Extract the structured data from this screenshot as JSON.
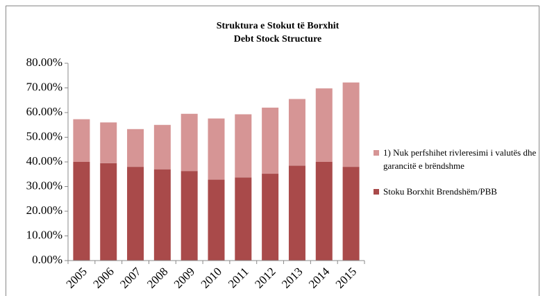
{
  "chart_data": {
    "type": "stacked_bar",
    "title": "Struktura e Stokut të Borxhit",
    "subtitle": "Debt Stock Structure",
    "categories": [
      "2005",
      "2006",
      "2007",
      "2008",
      "2009",
      "2010",
      "2011",
      "2012",
      "2013",
      "2014",
      "2015"
    ],
    "series": [
      {
        "name": "Stoku Borxhit Brendshëm/PBB",
        "color": "#a94a4a",
        "values": [
          40.0,
          39.5,
          38.0,
          37.0,
          36.3,
          32.8,
          33.7,
          35.2,
          38.5,
          40.0,
          38.0
        ]
      },
      {
        "name": "1) Nuk perfshihet rivleresimi i valutës dhe garancitë e brëndshme",
        "color": "#d69595",
        "values": [
          17.3,
          16.5,
          15.3,
          18.0,
          23.2,
          24.8,
          25.6,
          26.8,
          27.0,
          29.8,
          34.2
        ]
      }
    ],
    "ylim": [
      0,
      80
    ],
    "yticks": [
      {
        "value": 0,
        "label": "0.00%"
      },
      {
        "value": 10,
        "label": "10.00%"
      },
      {
        "value": 20,
        "label": "20.00%"
      },
      {
        "value": 30,
        "label": "30.00%"
      },
      {
        "value": 40,
        "label": "40.00%"
      },
      {
        "value": 50,
        "label": "50.00%"
      },
      {
        "value": 60,
        "label": "60.00%"
      },
      {
        "value": 70,
        "label": "70.00%"
      },
      {
        "value": 80,
        "label": "80.00%"
      }
    ],
    "grid": false,
    "legend": "right"
  }
}
